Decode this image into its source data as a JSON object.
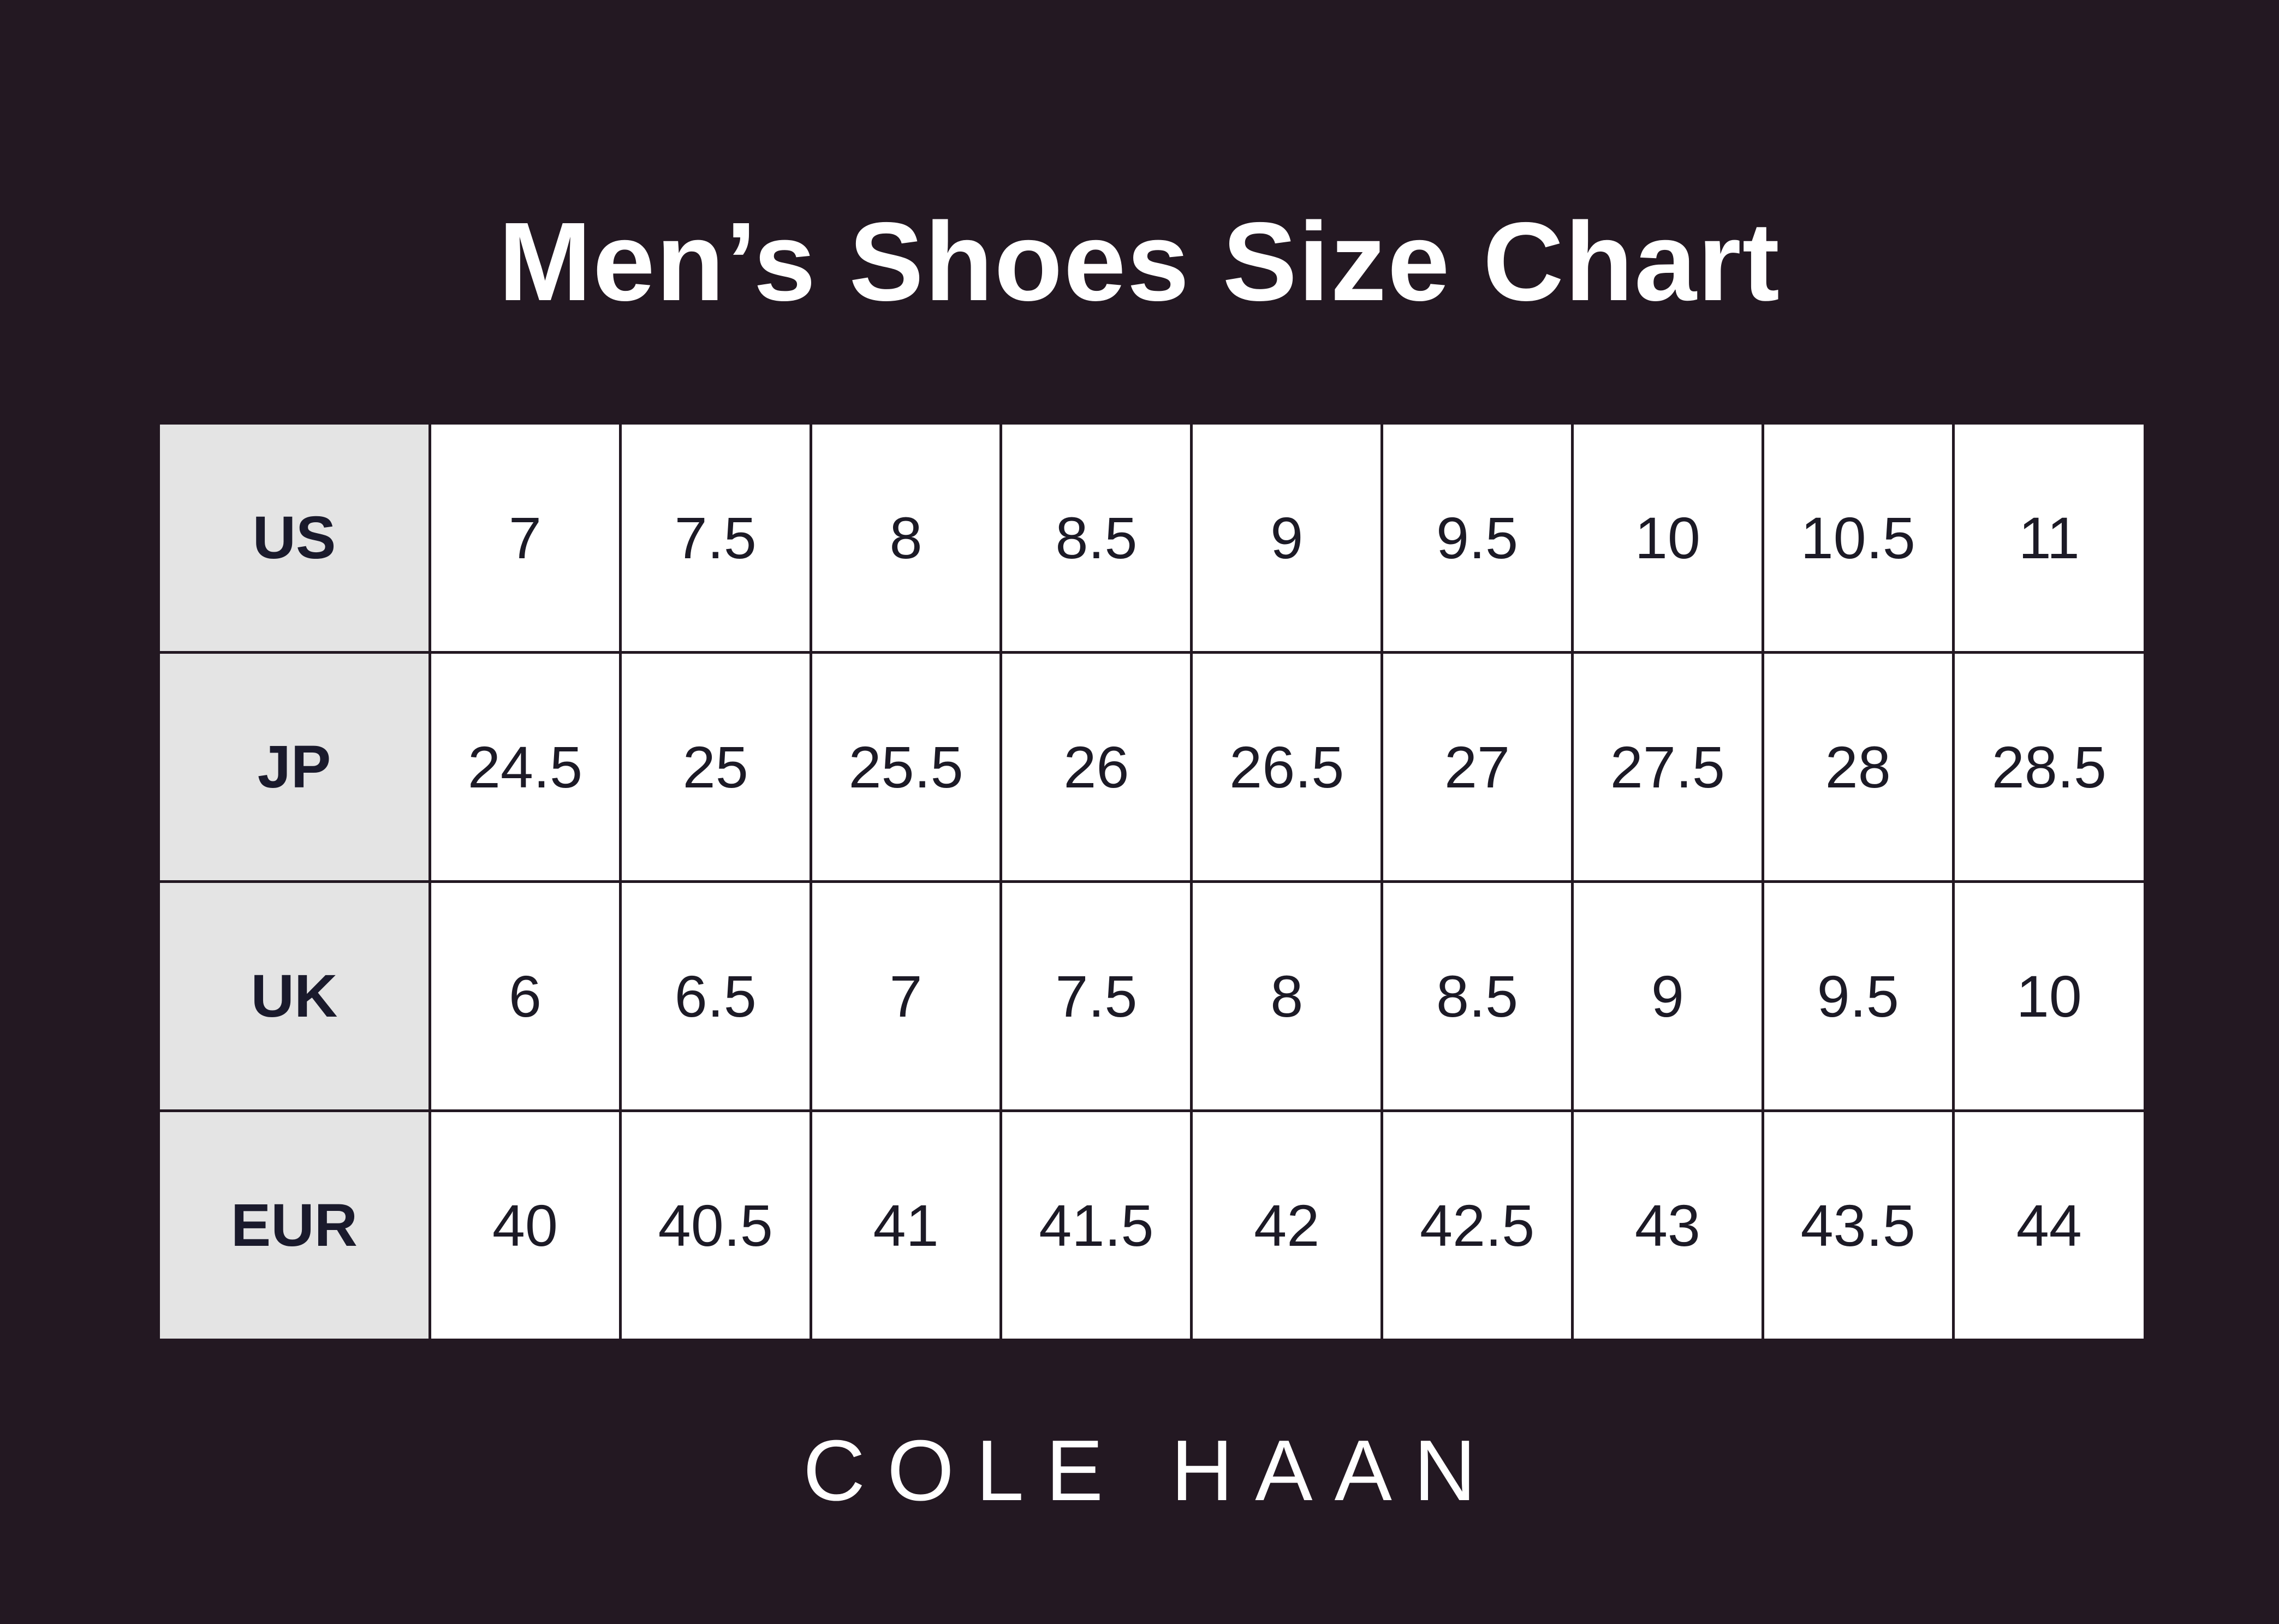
{
  "title": "Men’s Shoes Size Chart",
  "brand": "COLE HAAN",
  "colors": {
    "background": "#231822",
    "label_cell": "#e4e4e4",
    "cell": "#ffffff",
    "text": "#1c1a26"
  },
  "table": {
    "rows": [
      {
        "label": "US",
        "values": [
          "7",
          "7.5",
          "8",
          "8.5",
          "9",
          "9.5",
          "10",
          "10.5",
          "11"
        ]
      },
      {
        "label": "JP",
        "values": [
          "24.5",
          "25",
          "25.5",
          "26",
          "26.5",
          "27",
          "27.5",
          "28",
          "28.5"
        ]
      },
      {
        "label": "UK",
        "values": [
          "6",
          "6.5",
          "7",
          "7.5",
          "8",
          "8.5",
          "9",
          "9.5",
          "10"
        ]
      },
      {
        "label": "EUR",
        "values": [
          "40",
          "40.5",
          "41",
          "41.5",
          "42",
          "42.5",
          "43",
          "43.5",
          "44"
        ]
      }
    ]
  }
}
